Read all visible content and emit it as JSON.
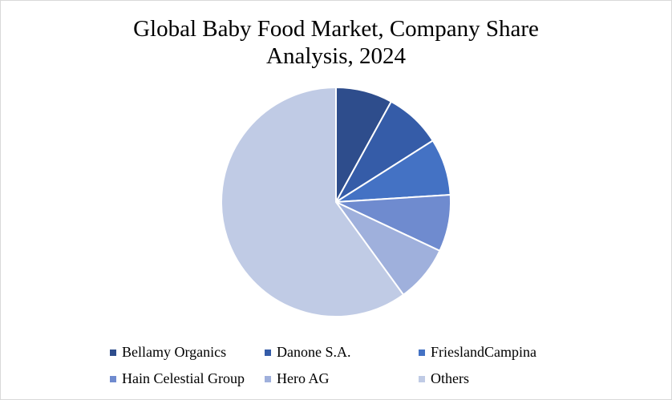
{
  "chart_data": {
    "type": "pie",
    "title_lines": [
      "Global Baby Food Market, Company Share",
      "Analysis, 2024"
    ],
    "categories": [
      "Bellamy Organics",
      "Danone S.A.",
      "FrieslandCampina",
      "Hain Celestial Group",
      "Hero AG",
      "Others"
    ],
    "values": [
      8,
      8,
      8,
      8,
      8,
      60
    ],
    "unit": "%",
    "colors": [
      "#2e4d8c",
      "#355ca8",
      "#4472c4",
      "#6f8bcf",
      "#9fb0dc",
      "#c0cbe5"
    ],
    "start_angle_deg": 0,
    "direction": "clockwise",
    "legend_position": "bottom",
    "grid": false
  }
}
